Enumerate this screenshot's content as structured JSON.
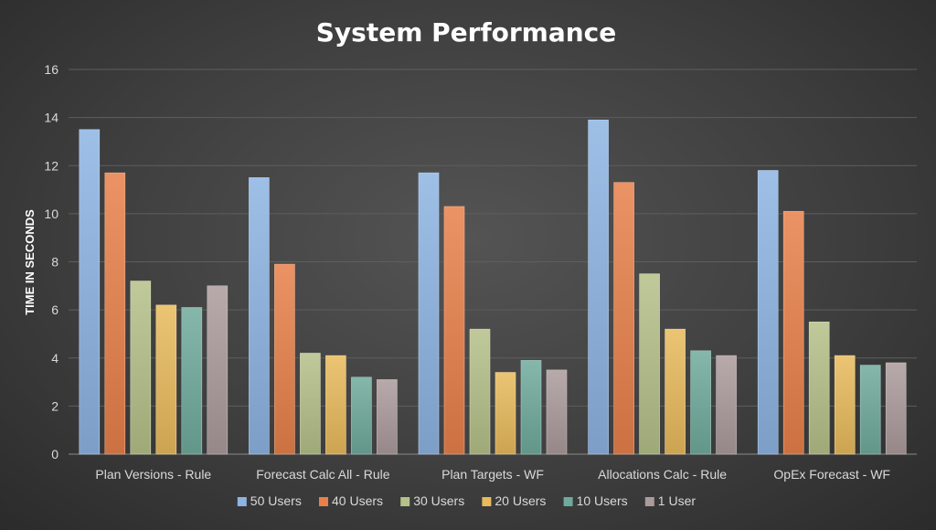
{
  "chart_data": {
    "type": "bar",
    "title": "System Performance",
    "xlabel": "",
    "ylabel": "TIME IN SECONDS",
    "ylim": [
      0,
      16
    ],
    "yticks": [
      0,
      2,
      4,
      6,
      8,
      10,
      12,
      14,
      16
    ],
    "grid": true,
    "legend_position": "bottom",
    "categories": [
      "Plan Versions - Rule",
      "Forecast Calc All - Rule",
      "Plan Targets - WF",
      "Allocations Calc - Rule",
      "OpEx Forecast - WF"
    ],
    "series": [
      {
        "name": "50 Users",
        "color": "#8db4e2",
        "values": [
          13.5,
          11.5,
          11.7,
          13.9,
          11.8
        ]
      },
      {
        "name": "40 Users",
        "color": "#e8804a",
        "values": [
          11.7,
          7.9,
          10.3,
          11.3,
          10.1
        ]
      },
      {
        "name": "30 Users",
        "color": "#b5c088",
        "values": [
          7.2,
          4.2,
          5.2,
          7.5,
          5.5
        ]
      },
      {
        "name": "20 Users",
        "color": "#e8ba5c",
        "values": [
          6.2,
          4.1,
          3.4,
          5.2,
          4.1
        ]
      },
      {
        "name": "10 Users",
        "color": "#6faa9c",
        "values": [
          6.1,
          3.2,
          3.9,
          4.3,
          3.7
        ]
      },
      {
        "name": "1 User",
        "color": "#ab9b9b",
        "values": [
          7.0,
          3.1,
          3.5,
          4.1,
          3.8
        ]
      }
    ]
  }
}
